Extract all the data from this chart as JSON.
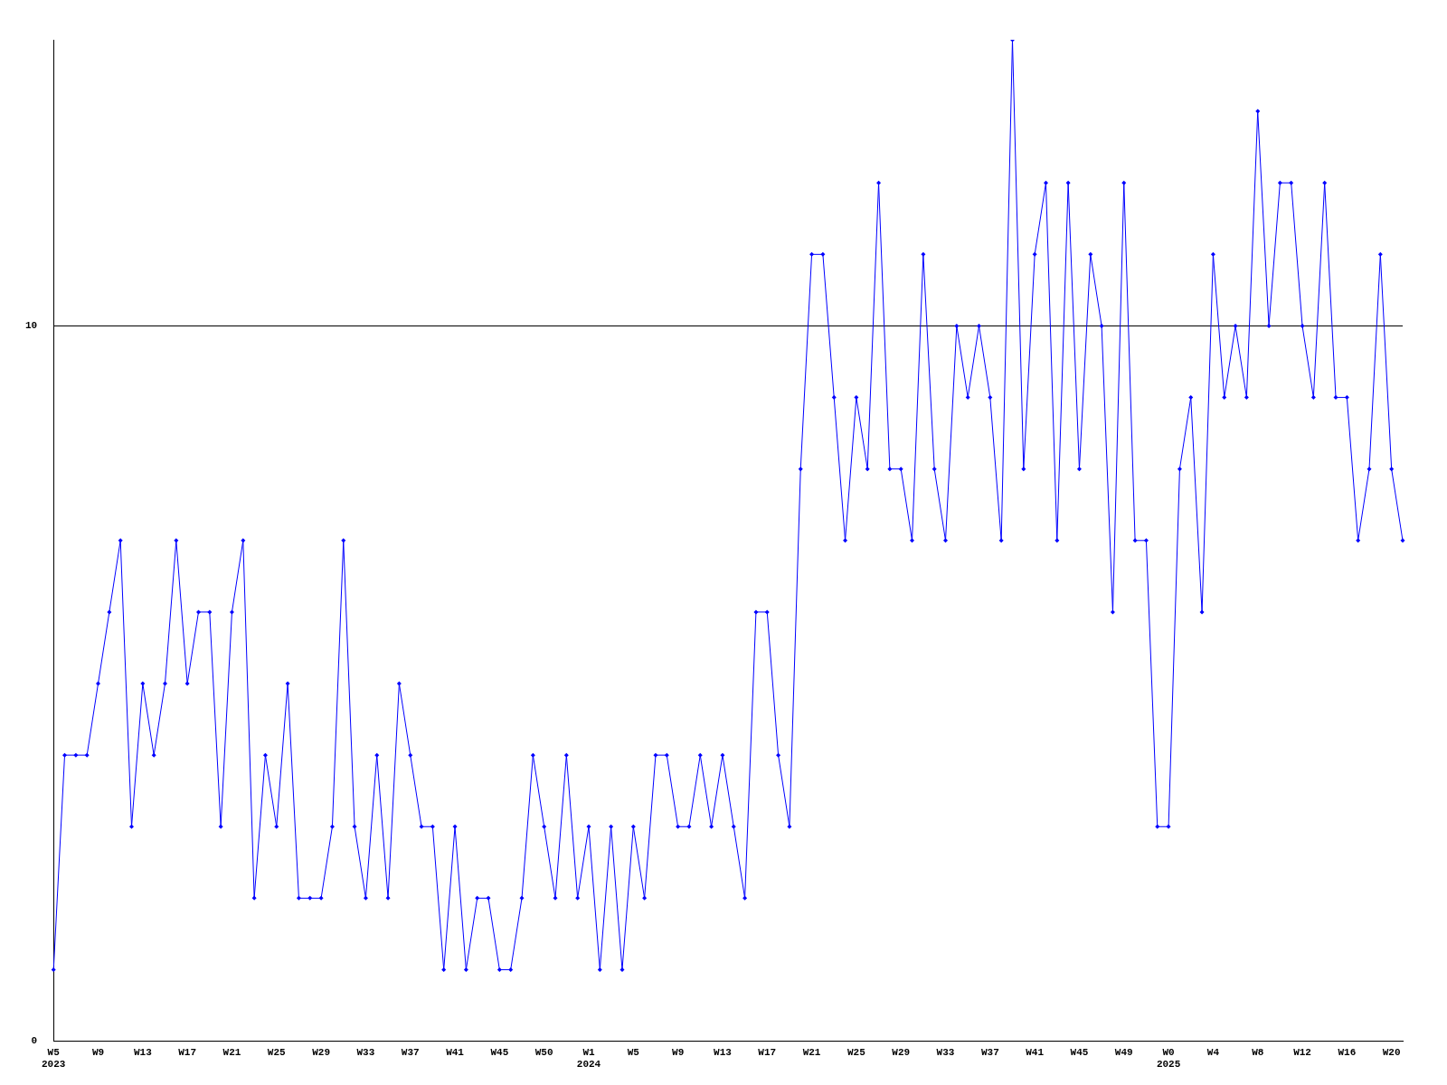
{
  "chart_data": {
    "type": "line",
    "categories": [
      "W5\n2023",
      null,
      null,
      null,
      "W9",
      null,
      null,
      null,
      "W13",
      null,
      null,
      null,
      "W17",
      null,
      null,
      null,
      "W21",
      null,
      null,
      null,
      "W25",
      null,
      null,
      null,
      "W29",
      null,
      null,
      null,
      "W33",
      null,
      null,
      null,
      "W37",
      null,
      null,
      null,
      "W41",
      null,
      null,
      null,
      "W45",
      null,
      null,
      null,
      "W50",
      null,
      null,
      null,
      "W1\n2024",
      null,
      null,
      null,
      "W5",
      null,
      null,
      null,
      "W9",
      null,
      null,
      null,
      "W13",
      null,
      null,
      null,
      "W17",
      null,
      null,
      null,
      "W21",
      null,
      null,
      null,
      "W25",
      null,
      null,
      null,
      "W29",
      null,
      null,
      null,
      "W33",
      null,
      null,
      null,
      "W37",
      null,
      null,
      null,
      "W41",
      null,
      null,
      null,
      "W45",
      null,
      null,
      null,
      "W49",
      null,
      null,
      null,
      "W0\n2025",
      null,
      null,
      null,
      "W4",
      null,
      null,
      null,
      "W8",
      null,
      null,
      null,
      "W12",
      null,
      null,
      null,
      "W16",
      null,
      null,
      null,
      "W20",
      null
    ],
    "series": [
      {
        "color": "#0000ff",
        "values": [
          1,
          4,
          4,
          4,
          5,
          6,
          7,
          3,
          5,
          4,
          5,
          7,
          5,
          6,
          6,
          3,
          6,
          7,
          2,
          4,
          3,
          5,
          2,
          2,
          2,
          3,
          7,
          3,
          2,
          4,
          2,
          5,
          4,
          3,
          3,
          1,
          3,
          1,
          2,
          2,
          1,
          1,
          2,
          4,
          3,
          2,
          4,
          2,
          3,
          1,
          3,
          1,
          3,
          2,
          4,
          4,
          3,
          3,
          4,
          3,
          4,
          3,
          2,
          6,
          6,
          4,
          3,
          8,
          11,
          11,
          9,
          7,
          9,
          8,
          12,
          8,
          8,
          7,
          11,
          8,
          7,
          10,
          9,
          10,
          9,
          7,
          14,
          8,
          11,
          12,
          7,
          12,
          8,
          11,
          10,
          6,
          12,
          7,
          7,
          3,
          3,
          8,
          9,
          6,
          11,
          9,
          10,
          9,
          13,
          10,
          12,
          12,
          10,
          9,
          12,
          9,
          9,
          7,
          8,
          11,
          8,
          7
        ]
      }
    ],
    "ylim": [
      0,
      14
    ],
    "yticks": [
      0,
      10
    ],
    "grid": "y",
    "legend": false,
    "marker": "diamond",
    "line_style": "solid"
  }
}
